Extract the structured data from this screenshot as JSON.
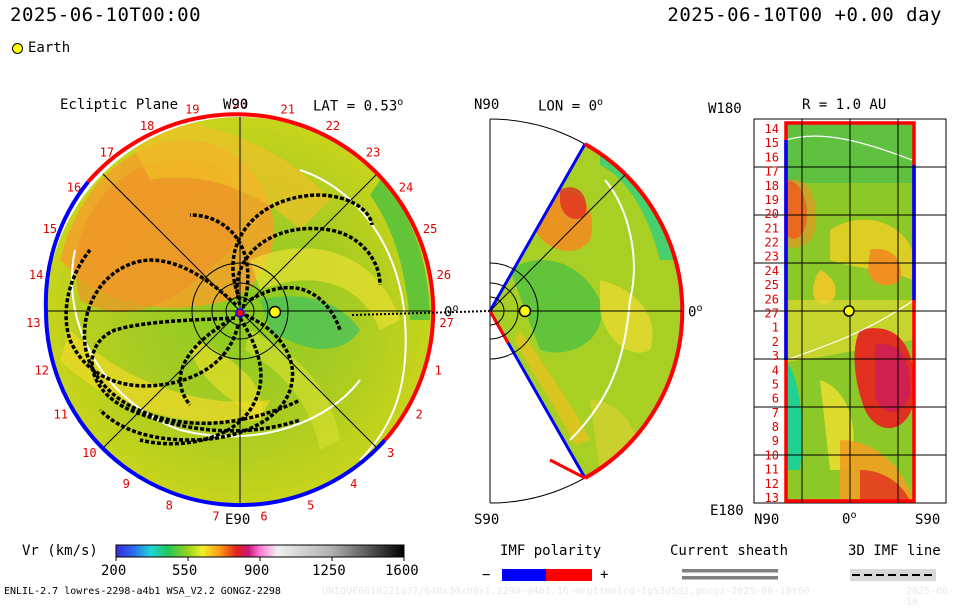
{
  "header": {
    "left_time": "2025-06-10T00:00",
    "right_time": "2025-06-10T00 +0.00 day",
    "legend_earth": "Earth"
  },
  "panels": {
    "ecliptic": {
      "title": "Ecliptic Plane",
      "top_axis": "W90",
      "bottom_axis": "E90",
      "lat_label": "LAT = 0.53",
      "lat_unit": "o",
      "zero_label": "0",
      "zero_unit": "o",
      "rotation_labels": [
        "20",
        "21",
        "22",
        "23",
        "24",
        "25",
        "26",
        "27",
        "1",
        "2",
        "3",
        "4",
        "5",
        "6",
        "7",
        "8",
        "9",
        "10",
        "11",
        "12",
        "13",
        "14",
        "15",
        "16",
        "17",
        "18",
        "19"
      ]
    },
    "meridional": {
      "top_axis": "N90",
      "bottom_axis": "S90",
      "lon_label": "LON = 0",
      "lon_unit": "o",
      "zero_label": "0",
      "zero_unit": "o"
    },
    "synoptic": {
      "r_label": "R = 1.0 AU",
      "top_left": "W180",
      "bottom_left": "E180",
      "x_labels": [
        "N90",
        "0",
        "S90"
      ],
      "x_zero_unit": "o",
      "y_labels": [
        "14",
        "15",
        "16",
        "17",
        "18",
        "19",
        "20",
        "21",
        "22",
        "23",
        "24",
        "25",
        "26",
        "27",
        "1",
        "2",
        "3",
        "4",
        "5",
        "6",
        "7",
        "8",
        "9",
        "10",
        "11",
        "12",
        "13"
      ]
    }
  },
  "colorbar": {
    "label": "Vr (km/s)",
    "ticks": [
      "200",
      "550",
      "900",
      "1250",
      "1600"
    ]
  },
  "legends": {
    "imf_polarity": "IMF polarity",
    "minus": "−",
    "plus": "+",
    "current_sheath": "Current sheath",
    "imf_line": "3D IMF line",
    "colors": {
      "negative": "#0000ff",
      "positive": "#ff0000",
      "sheath": "#7f7f7f"
    }
  },
  "footer": {
    "model": "ENLIL-2.7 lowres-2298-a4b1 WSA_V2.2 GONGZ-2298",
    "run": "UNIQUE0610221a37/640x30x90x1.2298-a4b1.16-mcpttmnlcd-1g53d5d2.gongz-2025-06-10t00",
    "date": "2025-06-10"
  },
  "chart_data": {
    "type": "heatmap",
    "variable": "Vr (km/s)",
    "colorbar_range": [
      200,
      1600
    ],
    "colorbar_ticks": [
      200,
      550,
      900,
      1250,
      1600
    ],
    "time": "2025-06-10T00:00",
    "offset_days": 0.0,
    "latitude_deg": 0.53,
    "longitude_deg": 0,
    "radius_au": 1.0,
    "earth_position": {
      "radius_au": 1.0,
      "lon_deg": 0,
      "lat_deg": 0.53
    }
  }
}
